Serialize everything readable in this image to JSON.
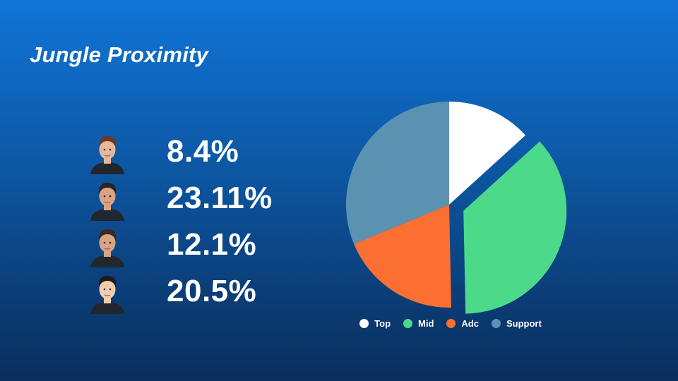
{
  "header": {
    "title": "Jungle Proximity"
  },
  "players": [
    {
      "value": "8.4%",
      "avatar_icon": "player-1-portrait-icon",
      "hair": "#6b3a22",
      "skin": "#e7b79a"
    },
    {
      "value": "23.11%",
      "avatar_icon": "player-2-portrait-icon",
      "hair": "#2b2420",
      "skin": "#d9a482"
    },
    {
      "value": "12.1%",
      "avatar_icon": "player-3-portrait-icon",
      "hair": "#3a2a20",
      "skin": "#d8a483"
    },
    {
      "value": "20.5%",
      "avatar_icon": "player-4-portrait-icon",
      "hair": "#1d1a18",
      "skin": "#f0ccb0"
    }
  ],
  "chart_data": {
    "type": "pie",
    "categories": [
      "Top",
      "Mid",
      "Adc",
      "Support"
    ],
    "values": [
      13.25,
      36.43,
      19.07,
      31.25
    ],
    "colors": [
      "#ffffff",
      "#4cd98a",
      "#fb6f33",
      "#5b91b1"
    ],
    "exploded": [
      "Mid"
    ],
    "legend": "bottom"
  }
}
